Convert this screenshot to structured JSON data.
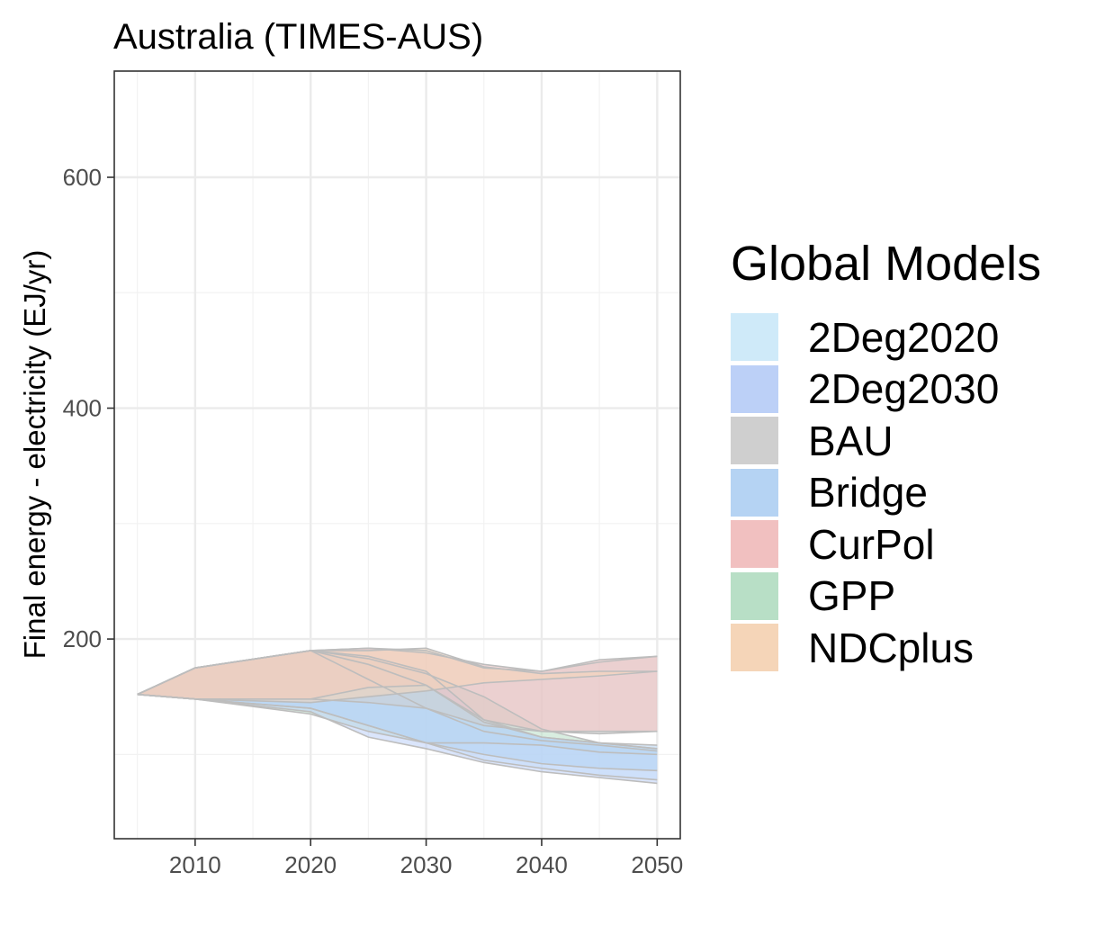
{
  "chart_data": {
    "type": "area",
    "title": "Australia (TIMES-AUS)",
    "xlabel": "",
    "ylabel": "Final energy - electricity (EJ/yr)",
    "xlim": [
      2003,
      2052
    ],
    "ylim": [
      27,
      692
    ],
    "x_ticks": [
      2010,
      2020,
      2030,
      2040,
      2050
    ],
    "y_ticks": [
      200,
      400,
      600
    ],
    "grid": true,
    "legend_title": "Global Models",
    "legend_position": "right",
    "series": [
      {
        "name": "GPP",
        "color": "#b8dfc6",
        "lines_color": "#bdbdbd",
        "x": [
          2005,
          2010,
          2020,
          2025,
          2030,
          2035,
          2040,
          2045,
          2050
        ],
        "upper": [
          152,
          175,
          190,
          183,
          170,
          150,
          122,
          110,
          105
        ],
        "lower": [
          152,
          148,
          135,
          120,
          110,
          110,
          108,
          102,
          100
        ]
      },
      {
        "name": "2Deg2020",
        "color": "#cfeaf9",
        "lines_color": "#bdbdbd",
        "x": [
          2005,
          2010,
          2020,
          2025,
          2030,
          2035,
          2040,
          2045,
          2050
        ],
        "upper": [
          152,
          175,
          190,
          165,
          140,
          120,
          112,
          108,
          103
        ],
        "lower": [
          152,
          148,
          140,
          125,
          110,
          95,
          88,
          82,
          78
        ]
      },
      {
        "name": "2Deg2030",
        "color": "#bcd0f7",
        "lines_color": "#bdbdbd",
        "x": [
          2005,
          2010,
          2020,
          2025,
          2030,
          2035,
          2040,
          2045,
          2050
        ],
        "upper": [
          152,
          175,
          190,
          185,
          172,
          130,
          115,
          110,
          105
        ],
        "lower": [
          152,
          148,
          137,
          115,
          105,
          93,
          85,
          80,
          75
        ]
      },
      {
        "name": "Bridge",
        "color": "#b5d3f3",
        "lines_color": "#bdbdbd",
        "x": [
          2005,
          2010,
          2020,
          2025,
          2030,
          2035,
          2040,
          2045,
          2050
        ],
        "upper": [
          152,
          175,
          190,
          178,
          160,
          128,
          115,
          110,
          108
        ],
        "lower": [
          152,
          148,
          140,
          125,
          110,
          100,
          92,
          88,
          86
        ]
      },
      {
        "name": "BAU",
        "color": "#cfcfcf",
        "lines_color": "#bdbdbd",
        "x": [
          2005,
          2010,
          2020,
          2025,
          2030,
          2035,
          2040,
          2045,
          2050
        ],
        "upper": [
          152,
          175,
          190,
          192,
          190,
          175,
          172,
          180,
          185
        ],
        "lower": [
          152,
          148,
          148,
          145,
          140,
          125,
          120,
          118,
          120
        ]
      },
      {
        "name": "CurPol",
        "color": "#f1c0c0",
        "lines_color": "#bdbdbd",
        "x": [
          2005,
          2010,
          2020,
          2025,
          2030,
          2035,
          2040,
          2045,
          2050
        ],
        "upper": [
          152,
          175,
          190,
          192,
          188,
          178,
          172,
          182,
          185
        ],
        "lower": [
          152,
          148,
          148,
          158,
          160,
          130,
          120,
          120,
          120
        ]
      },
      {
        "name": "NDCplus",
        "color": "#f5d5b8",
        "lines_color": "#bdbdbd",
        "x": [
          2005,
          2010,
          2020,
          2025,
          2030,
          2035,
          2040,
          2045,
          2050
        ],
        "upper": [
          152,
          175,
          190,
          190,
          192,
          176,
          170,
          172,
          172
        ],
        "lower": [
          152,
          148,
          145,
          150,
          155,
          162,
          165,
          168,
          172
        ]
      }
    ]
  }
}
